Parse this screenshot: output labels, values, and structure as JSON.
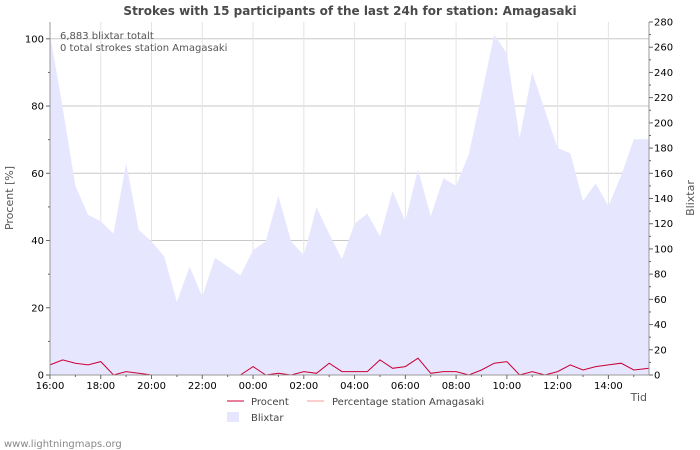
{
  "chart_data": {
    "type": "area",
    "title": "Strokes with 15 participants of the last 24h for station: Amagasaki",
    "ylabel_left": "Procent   [%]",
    "ylabel_right": "Blixtar",
    "xlabel": "Tid",
    "annotations": [
      "6,883 blixtar totalt",
      "0 total strokes station Amagasaki"
    ],
    "credit": "www.lightningmaps.org",
    "x_ticks": [
      "16:00",
      "18:00",
      "20:00",
      "22:00",
      "00:00",
      "02:00",
      "04:00",
      "06:00",
      "08:00",
      "10:00",
      "12:00",
      "14:00"
    ],
    "y_left_ticks": [
      "0",
      "20",
      "40",
      "60",
      "80",
      "100"
    ],
    "y_right_ticks": [
      "0",
      "20",
      "40",
      "60",
      "80",
      "100",
      "120",
      "140",
      "160",
      "180",
      "200",
      "220",
      "240",
      "260",
      "280"
    ],
    "ylim_left": [
      0,
      105
    ],
    "ylim_right": [
      0,
      280
    ],
    "x_hours": [
      0,
      23.6
    ],
    "grid": true,
    "legend": [
      {
        "label": "Procent",
        "color": "#cc0033",
        "kind": "line"
      },
      {
        "label": "Percentage station Amagasaki",
        "color": "#ff9999",
        "kind": "line"
      },
      {
        "label": "Blixtar",
        "color": "#e6e6ff",
        "kind": "area"
      }
    ],
    "series": [
      {
        "name": "Blixtar",
        "axis": "right",
        "color": "#e6e6ff",
        "x": [
          0,
          0.5,
          1,
          1.5,
          2,
          2.5,
          3,
          3.5,
          4,
          4.5,
          5,
          5.5,
          6,
          6.5,
          7,
          7.5,
          8,
          8.5,
          9,
          9.5,
          10,
          10.5,
          11,
          11.5,
          12,
          12.5,
          13,
          13.5,
          14,
          14.5,
          15,
          15.5,
          16,
          16.5,
          17,
          17.5,
          18,
          18.5,
          19,
          19.5,
          20,
          20.5,
          21,
          21.5,
          22,
          22.5,
          23,
          23.6
        ],
        "values": [
          270,
          212,
          150,
          127,
          122,
          112,
          168,
          115,
          106,
          94,
          58,
          86,
          62,
          93,
          86,
          79,
          99,
          106,
          142,
          106,
          95,
          133,
          112,
          92,
          120,
          128,
          110,
          146,
          122,
          163,
          126,
          156,
          150,
          175,
          222,
          270,
          255,
          188,
          240,
          210,
          180,
          176,
          138,
          152,
          134,
          158,
          187,
          187
        ]
      },
      {
        "name": "Procent",
        "axis": "left",
        "color": "#cc0033",
        "x": [
          0,
          0.5,
          1,
          1.5,
          2,
          2.5,
          3,
          3.5,
          4,
          4.5,
          5,
          5.5,
          6,
          6.5,
          7,
          7.5,
          8,
          8.5,
          9,
          9.5,
          10,
          10.5,
          11,
          11.5,
          12,
          12.5,
          13,
          13.5,
          14,
          14.5,
          15,
          15.5,
          16,
          16.5,
          17,
          17.5,
          18,
          18.5,
          19,
          19.5,
          20,
          20.5,
          21,
          21.5,
          22,
          22.5,
          23,
          23.6
        ],
        "values": [
          3,
          4.5,
          3.5,
          3,
          4,
          0,
          1,
          0.5,
          0,
          0,
          0,
          0,
          0,
          0,
          0,
          0,
          2.5,
          0,
          0.5,
          0,
          1,
          0.5,
          3.5,
          1,
          1,
          1,
          4.5,
          2,
          2.5,
          5,
          0.5,
          1,
          1,
          0,
          1.5,
          3.5,
          4,
          0,
          1,
          0,
          1,
          3,
          1.5,
          2.5,
          3,
          3.5,
          1.5,
          2
        ]
      }
    ]
  }
}
